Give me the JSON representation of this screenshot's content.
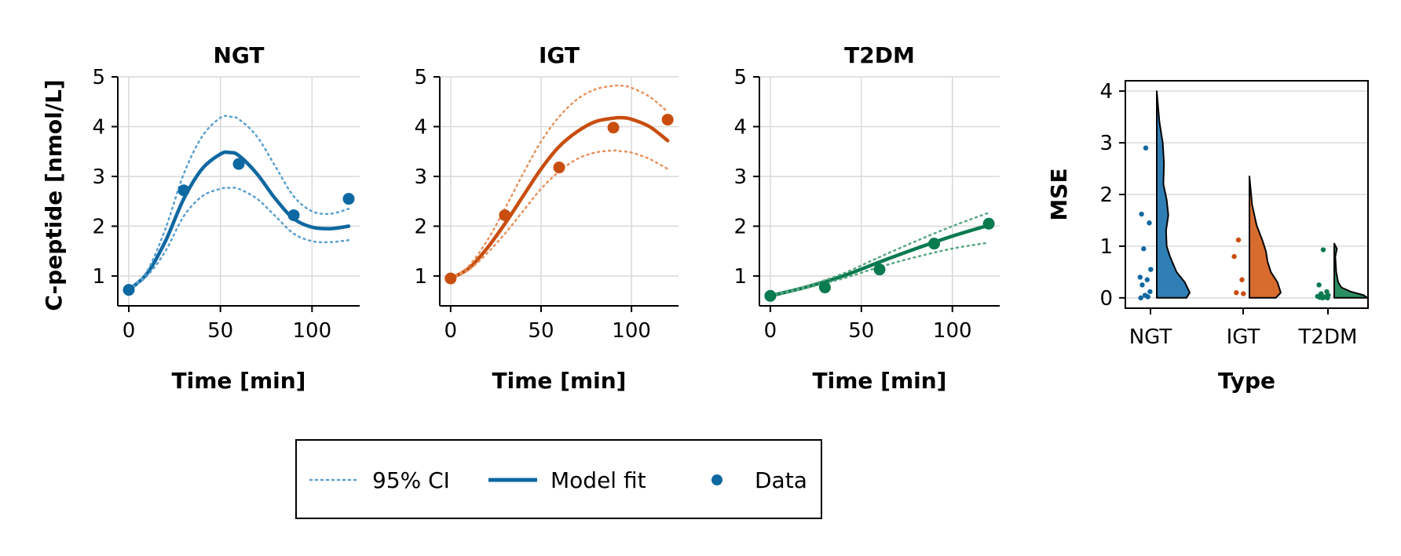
{
  "colors": {
    "NGT": "#0e68a1",
    "IGT": "#c84e0f",
    "T2DM": "#0a7a4f",
    "NGT_light": "#5aa0cf",
    "IGT_light": "#e8925e",
    "T2DM_light": "#5aa882",
    "violin_NGT": "#2f7fb4",
    "violin_IGT": "#d86c2e",
    "violin_T2DM": "#2b8f61",
    "grid": "#d9d9d9"
  },
  "chart_data": [
    {
      "type": "line",
      "title": "NGT",
      "xlabel": "Time [min]",
      "ylabel": "C-peptide [nmol/L]",
      "xlim": [
        -6,
        126
      ],
      "ylim": [
        0.4,
        5.0
      ],
      "xticks": [
        0,
        50,
        100
      ],
      "yticks": [
        1,
        2,
        3,
        4,
        5
      ],
      "grid": true,
      "series": [
        {
          "name": "Model fit",
          "style": "solid",
          "x": [
            0,
            10,
            20,
            30,
            40,
            50,
            55,
            60,
            70,
            80,
            90,
            100,
            110,
            120
          ],
          "y": [
            0.72,
            1.05,
            1.7,
            2.55,
            3.15,
            3.45,
            3.48,
            3.42,
            3.05,
            2.55,
            2.15,
            1.98,
            1.95,
            2.0
          ]
        },
        {
          "name": "95% CI",
          "style": "dotted",
          "x": [
            0,
            10,
            20,
            30,
            40,
            50,
            55,
            60,
            70,
            80,
            90,
            100,
            110,
            120
          ],
          "y": [
            0.72,
            1.1,
            1.95,
            3.05,
            3.8,
            4.18,
            4.2,
            4.15,
            3.8,
            3.2,
            2.6,
            2.3,
            2.25,
            2.35
          ]
        },
        {
          "name": "95% CI",
          "style": "dotted",
          "x": [
            0,
            10,
            20,
            30,
            40,
            50,
            55,
            60,
            70,
            80,
            90,
            100,
            110,
            120
          ],
          "y": [
            0.72,
            1.0,
            1.5,
            2.2,
            2.6,
            2.75,
            2.77,
            2.75,
            2.55,
            2.2,
            1.85,
            1.7,
            1.68,
            1.72
          ]
        },
        {
          "name": "Data",
          "style": "points",
          "x": [
            0,
            30,
            60,
            90,
            120
          ],
          "y": [
            0.72,
            2.72,
            3.25,
            2.22,
            2.55
          ]
        }
      ]
    },
    {
      "type": "line",
      "title": "IGT",
      "xlabel": "Time [min]",
      "ylabel": "",
      "xlim": [
        -6,
        126
      ],
      "ylim": [
        0.4,
        5.0
      ],
      "xticks": [
        0,
        50,
        100
      ],
      "yticks": [
        1,
        2,
        3,
        4,
        5
      ],
      "grid": true,
      "series": [
        {
          "name": "Model fit",
          "style": "solid",
          "x": [
            0,
            10,
            20,
            30,
            40,
            50,
            60,
            70,
            80,
            90,
            95,
            100,
            110,
            120
          ],
          "y": [
            0.95,
            1.15,
            1.55,
            2.05,
            2.6,
            3.15,
            3.6,
            3.9,
            4.1,
            4.17,
            4.18,
            4.15,
            4.0,
            3.72
          ]
        },
        {
          "name": "95% CI",
          "style": "dotted",
          "x": [
            0,
            10,
            20,
            30,
            40,
            50,
            60,
            70,
            80,
            90,
            95,
            100,
            110,
            120
          ],
          "y": [
            0.95,
            1.2,
            1.7,
            2.35,
            3.05,
            3.7,
            4.2,
            4.55,
            4.75,
            4.82,
            4.82,
            4.78,
            4.6,
            4.3
          ]
        },
        {
          "name": "95% CI",
          "style": "dotted",
          "x": [
            0,
            10,
            20,
            30,
            40,
            50,
            60,
            70,
            80,
            90,
            95,
            100,
            110,
            120
          ],
          "y": [
            0.95,
            1.12,
            1.45,
            1.85,
            2.3,
            2.75,
            3.1,
            3.35,
            3.48,
            3.52,
            3.5,
            3.48,
            3.35,
            3.15
          ]
        },
        {
          "name": "Data",
          "style": "points",
          "x": [
            0,
            30,
            60,
            90,
            120
          ],
          "y": [
            0.95,
            2.22,
            3.18,
            3.98,
            4.14
          ]
        }
      ]
    },
    {
      "type": "line",
      "title": "T2DM",
      "xlabel": "Time [min]",
      "ylabel": "",
      "xlim": [
        -6,
        126
      ],
      "ylim": [
        0.4,
        5.0
      ],
      "xticks": [
        0,
        50,
        100
      ],
      "yticks": [
        1,
        2,
        3,
        4,
        5
      ],
      "grid": true,
      "series": [
        {
          "name": "Model fit",
          "style": "solid",
          "x": [
            0,
            20,
            40,
            60,
            80,
            100,
            120
          ],
          "y": [
            0.6,
            0.78,
            1.0,
            1.28,
            1.55,
            1.8,
            2.02
          ]
        },
        {
          "name": "95% CI",
          "style": "dotted",
          "x": [
            0,
            20,
            40,
            60,
            80,
            100,
            120
          ],
          "y": [
            0.6,
            0.8,
            1.05,
            1.38,
            1.7,
            2.0,
            2.27
          ]
        },
        {
          "name": "95% CI",
          "style": "dotted",
          "x": [
            0,
            20,
            40,
            60,
            80,
            100,
            120
          ],
          "y": [
            0.6,
            0.76,
            0.95,
            1.18,
            1.38,
            1.55,
            1.67
          ]
        },
        {
          "name": "Data",
          "style": "points",
          "x": [
            0,
            30,
            60,
            90,
            120
          ],
          "y": [
            0.6,
            0.77,
            1.13,
            1.65,
            2.05
          ]
        }
      ]
    },
    {
      "type": "violin",
      "title": "",
      "xlabel": "Type",
      "ylabel": "MSE",
      "categories": [
        "NGT",
        "IGT",
        "T2DM"
      ],
      "ylim": [
        -0.2,
        4.2
      ],
      "yticks": [
        0,
        1,
        2,
        3,
        4
      ],
      "grid": true,
      "points": [
        [
          2.9,
          1.62,
          1.45,
          0.95,
          0.55,
          0.4,
          0.35,
          0.25,
          0.12,
          0.05,
          0.02,
          0.0
        ],
        [
          1.12,
          0.8,
          0.35,
          0.1,
          0.08
        ],
        [
          0.93,
          0.25,
          0.12,
          0.08,
          0.05,
          0.03,
          0.02,
          0.01,
          0.0,
          0.0
        ]
      ],
      "density": [
        {
          "max": 4.0,
          "profile": [
            [
              0,
              0.9
            ],
            [
              0.1,
              1.0
            ],
            [
              0.3,
              0.85
            ],
            [
              0.5,
              0.6
            ],
            [
              0.8,
              0.4
            ],
            [
              1.0,
              0.3
            ],
            [
              1.3,
              0.28
            ],
            [
              1.6,
              0.35
            ],
            [
              1.9,
              0.3
            ],
            [
              2.2,
              0.2
            ],
            [
              2.6,
              0.22
            ],
            [
              3.0,
              0.18
            ],
            [
              3.4,
              0.08
            ],
            [
              4.0,
              0.0
            ]
          ]
        },
        {
          "max": 2.35,
          "profile": [
            [
              0,
              0.8
            ],
            [
              0.1,
              0.95
            ],
            [
              0.3,
              0.85
            ],
            [
              0.5,
              0.65
            ],
            [
              0.7,
              0.55
            ],
            [
              0.9,
              0.5
            ],
            [
              1.1,
              0.4
            ],
            [
              1.4,
              0.22
            ],
            [
              1.8,
              0.08
            ],
            [
              2.35,
              0.0
            ]
          ]
        },
        {
          "max": 1.05,
          "profile": [
            [
              0,
              1.0
            ],
            [
              0.05,
              0.9
            ],
            [
              0.12,
              0.5
            ],
            [
              0.2,
              0.22
            ],
            [
              0.3,
              0.12
            ],
            [
              0.5,
              0.06
            ],
            [
              0.8,
              0.03
            ],
            [
              0.95,
              0.08
            ],
            [
              1.05,
              0.0
            ]
          ]
        }
      ]
    }
  ],
  "legend": {
    "ci_label": "95% CI",
    "fit_label": "Model fit",
    "data_label": "Data"
  }
}
